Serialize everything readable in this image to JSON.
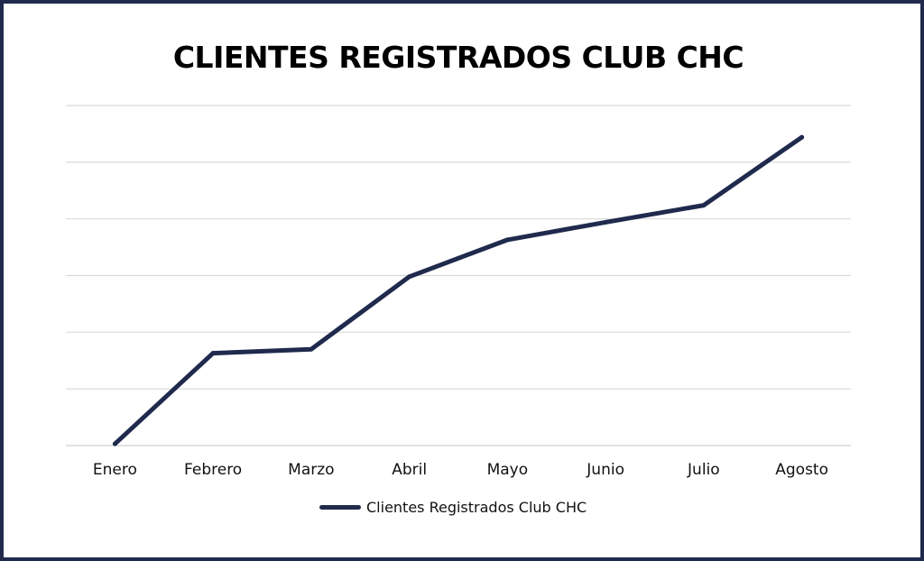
{
  "colors": {
    "frame_border": "#1f2a4d",
    "series_line": "#1f2a4d",
    "gridline": "#d9d9d9",
    "background": "#ffffff"
  },
  "chart_data": {
    "type": "line",
    "title": "CLIENTES REGISTRADOS CLUB CHC",
    "xlabel": "",
    "ylabel": "",
    "categories": [
      "Enero",
      "Febrero",
      "Marzo",
      "Abril",
      "Mayo",
      "Junio",
      "Julio",
      "Agosto"
    ],
    "series": [
      {
        "name": "Clientes Registrados Club CHC",
        "values": [
          0.3,
          16.3,
          17.0,
          29.8,
          36.3,
          39.4,
          42.4,
          54.4
        ]
      }
    ],
    "ylim": [
      0,
      60
    ],
    "y_gridlines": 6,
    "y_tick_labels_shown": false,
    "grid": true,
    "legend_position": "bottom"
  }
}
